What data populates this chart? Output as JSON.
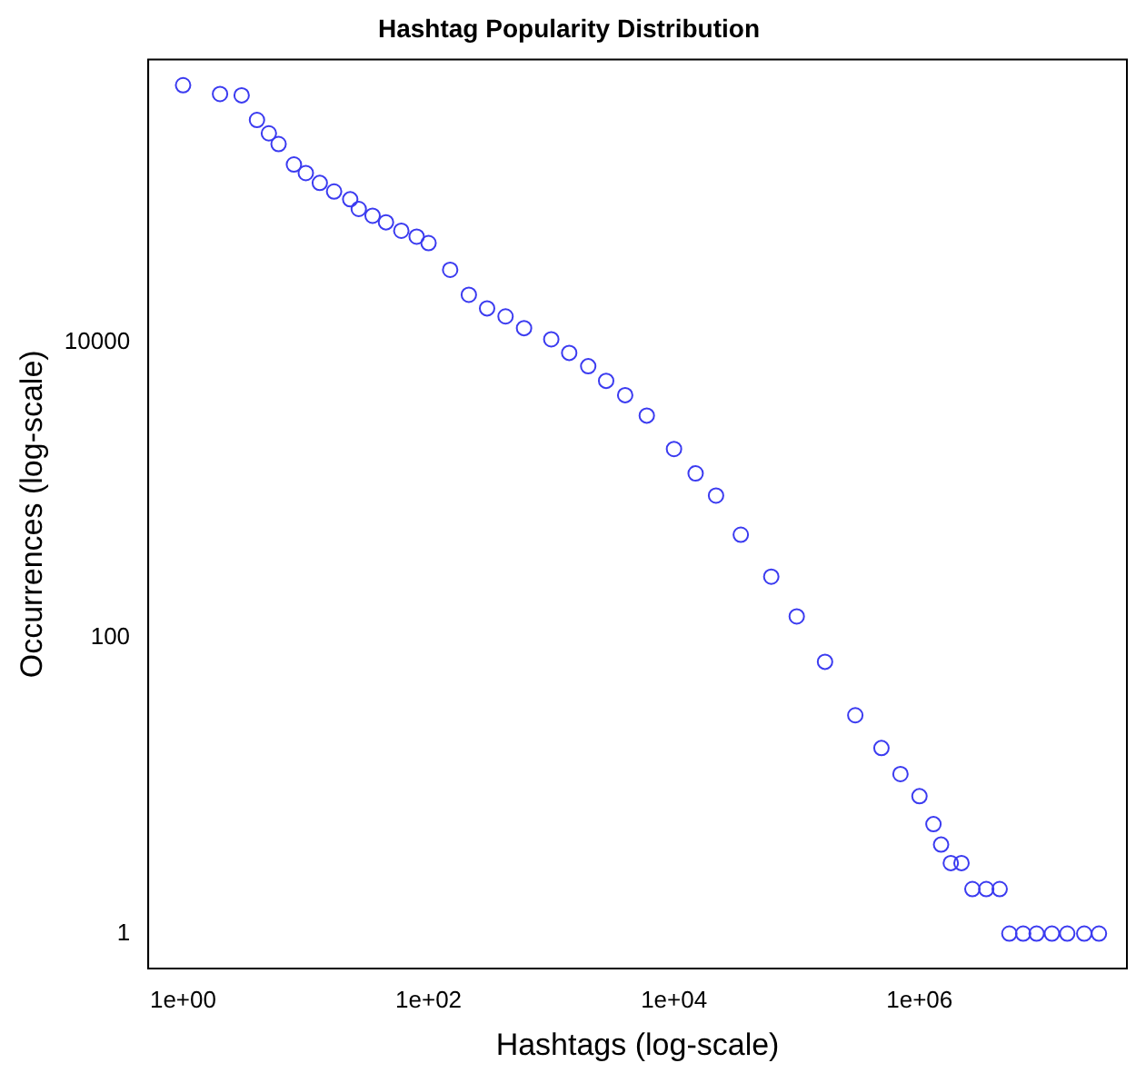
{
  "chart_data": {
    "type": "scatter",
    "title": "Hashtag Popularity Distribution",
    "xlabel": "Hashtags (log-scale)",
    "ylabel": "Occurrences (log-scale)",
    "log": "xy",
    "marker": "circle",
    "grid": false,
    "legend": false,
    "xlim": [
      0.52,
      49000000
    ],
    "ylim": [
      0.58,
      820000
    ],
    "xticks": [
      {
        "value": 1,
        "label": "1e+00"
      },
      {
        "value": 100,
        "label": "1e+02"
      },
      {
        "value": 10000,
        "label": "1e+04"
      },
      {
        "value": 1000000,
        "label": "1e+06"
      }
    ],
    "yticks": [
      1,
      100,
      10000
    ],
    "series": [
      {
        "color": "#3b3bf0",
        "x": [
          1,
          2,
          3,
          4,
          5,
          6,
          8,
          10,
          13,
          17,
          23,
          27,
          35,
          45,
          60,
          80,
          100,
          150,
          213,
          300,
          424,
          600,
          1000,
          1400,
          2000,
          2800,
          4000,
          6000,
          10000,
          15000,
          22000,
          35000,
          62000,
          100000,
          170000,
          300000,
          490000,
          700000,
          1000000,
          1300000,
          1500000,
          1800000,
          2200000,
          2700000,
          3500000,
          4500000,
          5400000,
          7000000,
          9000000,
          12000000,
          16000000,
          22000000,
          29000000
        ],
        "values": [
          550000,
          480000,
          470000,
          320000,
          260000,
          220000,
          160000,
          140000,
          120000,
          105000,
          93000,
          80000,
          72000,
          65000,
          57000,
          52000,
          47000,
          31000,
          21000,
          17000,
          15000,
          12500,
          10500,
          8500,
          6900,
          5500,
          4400,
          3200,
          1900,
          1300,
          920,
          500,
          260,
          140,
          69,
          30,
          18,
          12,
          8.5,
          5.5,
          4,
          3,
          3,
          2,
          2,
          2,
          1,
          1,
          1,
          1,
          1,
          1,
          1
        ]
      }
    ]
  }
}
